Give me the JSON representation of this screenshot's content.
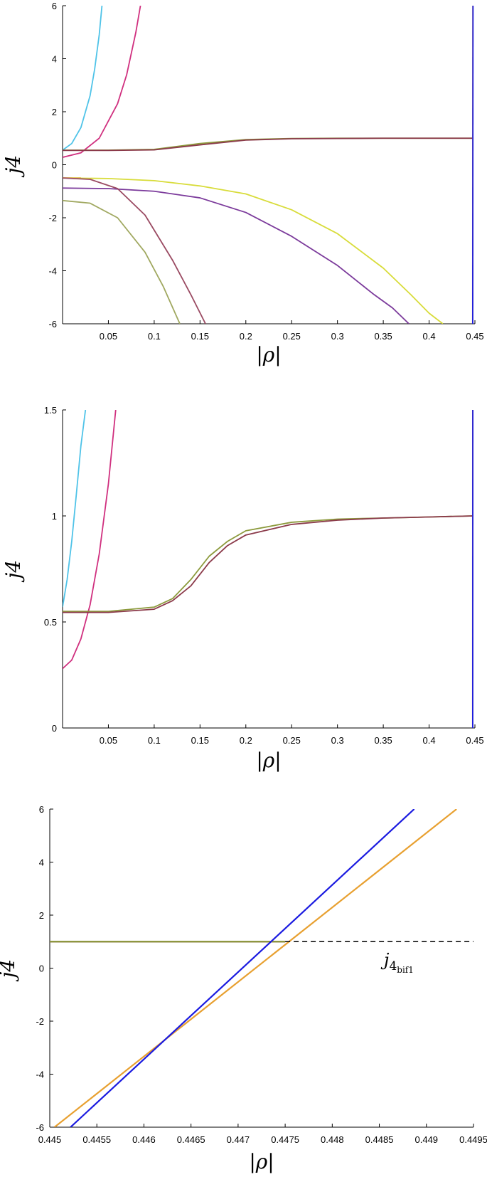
{
  "chart_data": [
    {
      "type": "line",
      "xlabel": "|ρ|",
      "ylabel": "j4",
      "xlim": [
        0,
        0.45
      ],
      "ylim": [
        -6,
        6
      ],
      "xticks": [
        "0.05",
        "0.1",
        "0.15",
        "0.2",
        "0.25",
        "0.3",
        "0.35",
        "0.4",
        "0.45"
      ],
      "yticks": [
        "6",
        "4",
        "2",
        "0",
        "-2",
        "-4",
        "-6"
      ],
      "xtick_values": [
        0.05,
        0.1,
        0.15,
        0.2,
        0.25,
        0.3,
        0.35,
        0.4,
        0.45
      ],
      "ytick_values": [
        6,
        4,
        2,
        0,
        -2,
        -4,
        -6
      ],
      "series": [
        {
          "color": "#4fc3e8",
          "x": [
            0,
            0.01,
            0.02,
            0.03,
            0.035,
            0.04,
            0.043
          ],
          "y": [
            0.55,
            0.8,
            1.4,
            2.6,
            3.6,
            4.9,
            6
          ]
        },
        {
          "color": "#d0307f",
          "x": [
            0,
            0.02,
            0.04,
            0.06,
            0.07,
            0.08,
            0.085
          ],
          "y": [
            0.28,
            0.45,
            1.0,
            2.3,
            3.4,
            5.0,
            6
          ]
        },
        {
          "color": "#8c9a3c",
          "x": [
            0,
            0.05,
            0.1,
            0.15,
            0.2,
            0.25,
            0.3,
            0.35,
            0.4,
            0.448
          ],
          "y": [
            0.55,
            0.55,
            0.58,
            0.8,
            0.95,
            0.99,
            1.0,
            1.0,
            1.0,
            1.0
          ]
        },
        {
          "color": "#8b3a4a",
          "x": [
            0,
            0.05,
            0.1,
            0.15,
            0.2,
            0.25,
            0.3,
            0.35,
            0.4,
            0.448
          ],
          "y": [
            0.54,
            0.54,
            0.56,
            0.75,
            0.93,
            0.98,
            0.99,
            1.0,
            1.0,
            1.0
          ]
        },
        {
          "color": "#e06a10",
          "x": [
            0,
            0.01,
            0.02
          ],
          "y": [
            -0.5,
            -0.5,
            -0.5
          ]
        },
        {
          "color": "#d8dc3a",
          "x": [
            0,
            0.05,
            0.1,
            0.15,
            0.2,
            0.25,
            0.3,
            0.35,
            0.38,
            0.4,
            0.415
          ],
          "y": [
            -0.5,
            -0.52,
            -0.6,
            -0.8,
            -1.1,
            -1.7,
            -2.6,
            -3.9,
            -4.9,
            -5.6,
            -6
          ]
        },
        {
          "color": "#7b3a9b",
          "x": [
            0,
            0.05,
            0.1,
            0.15,
            0.2,
            0.25,
            0.3,
            0.34,
            0.36,
            0.378
          ],
          "y": [
            -0.88,
            -0.9,
            -1.0,
            -1.25,
            -1.8,
            -2.7,
            -3.8,
            -4.9,
            -5.4,
            -6
          ]
        },
        {
          "color": "#9a4a62",
          "x": [
            0,
            0.03,
            0.06,
            0.09,
            0.12,
            0.14,
            0.156
          ],
          "y": [
            -0.5,
            -0.55,
            -0.9,
            -1.9,
            -3.6,
            -4.9,
            -6
          ]
        },
        {
          "color": "#a0a860",
          "x": [
            0,
            0.03,
            0.06,
            0.09,
            0.11,
            0.128
          ],
          "y": [
            -1.35,
            -1.45,
            -2.0,
            -3.3,
            -4.6,
            -6
          ]
        },
        {
          "color": "#e8a030",
          "x": [
            0.4475,
            0.4478
          ],
          "y": [
            -6,
            6
          ]
        },
        {
          "color": "#1a1ae0",
          "x": [
            0.4476,
            0.4479
          ],
          "y": [
            -6,
            6
          ]
        }
      ]
    },
    {
      "type": "line",
      "xlabel": "|ρ|",
      "ylabel": "j4",
      "xlim": [
        0,
        0.45
      ],
      "ylim": [
        0,
        1.5
      ],
      "xticks": [
        "0.05",
        "0.1",
        "0.15",
        "0.2",
        "0.25",
        "0.3",
        "0.35",
        "0.4",
        "0.45"
      ],
      "yticks": [
        "1.5",
        "1",
        "0.5",
        "0"
      ],
      "xtick_values": [
        0.05,
        0.1,
        0.15,
        0.2,
        0.25,
        0.3,
        0.35,
        0.4,
        0.45
      ],
      "ytick_values": [
        1.5,
        1,
        0.5,
        0
      ],
      "series": [
        {
          "color": "#4fc3e8",
          "x": [
            0,
            0.005,
            0.01,
            0.015,
            0.02,
            0.025
          ],
          "y": [
            0.57,
            0.7,
            0.88,
            1.1,
            1.33,
            1.5
          ]
        },
        {
          "color": "#d0307f",
          "x": [
            0,
            0.01,
            0.02,
            0.03,
            0.04,
            0.05,
            0.058
          ],
          "y": [
            0.28,
            0.32,
            0.42,
            0.58,
            0.82,
            1.15,
            1.5
          ]
        },
        {
          "color": "#8c9a3c",
          "x": [
            0,
            0.05,
            0.1,
            0.12,
            0.14,
            0.16,
            0.18,
            0.2,
            0.25,
            0.3,
            0.35,
            0.4,
            0.448
          ],
          "y": [
            0.55,
            0.55,
            0.57,
            0.61,
            0.7,
            0.81,
            0.88,
            0.93,
            0.97,
            0.985,
            0.99,
            0.995,
            1.0
          ]
        },
        {
          "color": "#8b3a4a",
          "x": [
            0,
            0.05,
            0.1,
            0.12,
            0.14,
            0.16,
            0.18,
            0.2,
            0.25,
            0.3,
            0.35,
            0.4,
            0.448
          ],
          "y": [
            0.545,
            0.545,
            0.56,
            0.6,
            0.67,
            0.78,
            0.86,
            0.91,
            0.96,
            0.98,
            0.99,
            0.995,
            1.0
          ]
        },
        {
          "color": "#e8a030",
          "x": [
            0.4475,
            0.4476
          ],
          "y": [
            0,
            1.5
          ]
        },
        {
          "color": "#1a1ae0",
          "x": [
            0.4476,
            0.4477
          ],
          "y": [
            0,
            1.5
          ]
        }
      ]
    },
    {
      "type": "line",
      "xlabel": "|ρ|",
      "ylabel": "j4",
      "xlim": [
        0.445,
        0.4495
      ],
      "ylim": [
        -6,
        6
      ],
      "xticks": [
        "0.445",
        "0.4455",
        "0.446",
        "0.4465",
        "0.447",
        "0.4475",
        "0.448",
        "0.4485",
        "0.449",
        "0.4495"
      ],
      "yticks": [
        "6",
        "4",
        "2",
        "0",
        "-2",
        "-4",
        "-6"
      ],
      "xtick_values": [
        0.445,
        0.4455,
        0.446,
        0.4465,
        0.447,
        0.4475,
        0.448,
        0.4485,
        0.449,
        0.4495
      ],
      "ytick_values": [
        6,
        4,
        2,
        0,
        -2,
        -4,
        -6
      ],
      "annotation": {
        "base": "j",
        "sub": "4",
        "subsub": "bif1"
      },
      "series": [
        {
          "color": "#8b3a4a",
          "x": [
            0.445,
            0.4475
          ],
          "y": [
            1,
            1
          ]
        },
        {
          "color": "#8c9a3c",
          "x": [
            0.445,
            0.4475
          ],
          "y": [
            1,
            1
          ]
        },
        {
          "color": "#e8a030",
          "x": [
            0.44505,
            0.44932
          ],
          "y": [
            -6,
            6
          ]
        },
        {
          "color": "#1a1ae0",
          "x": [
            0.44522,
            0.44887
          ],
          "y": [
            -6,
            6
          ]
        },
        {
          "color": "#000000",
          "dashed": true,
          "x": [
            0.4475,
            0.4495
          ],
          "y": [
            1,
            1
          ]
        }
      ]
    }
  ]
}
